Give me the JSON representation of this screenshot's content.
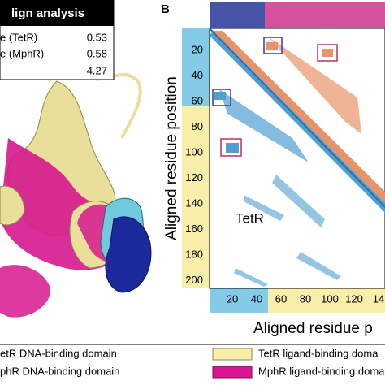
{
  "table": {
    "header": "lign analysis",
    "rows": [
      {
        "label": "e (TetR)",
        "value": "0.53"
      },
      {
        "label": "e (MphR)",
        "value": "0.58"
      },
      {
        "value": "4.27"
      }
    ]
  },
  "panel_label": "B",
  "map": {
    "x_ticks": [
      "20",
      "40",
      "60",
      "80",
      "100",
      "120",
      "14"
    ],
    "y_ticks": [
      "20",
      "40",
      "60",
      "80",
      "100",
      "120",
      "140",
      "160",
      "180",
      "200"
    ],
    "y_label": "Aligned residue position",
    "x_label": "Aligned residue p",
    "annotation": "TetR"
  },
  "legend": [
    {
      "label": "etR DNA-binding domain"
    },
    {
      "label": "phR DNA-binding domain"
    },
    {
      "label": "TetR ligand-binding doma"
    },
    {
      "label": "MphR ligand-binding doma"
    }
  ]
}
